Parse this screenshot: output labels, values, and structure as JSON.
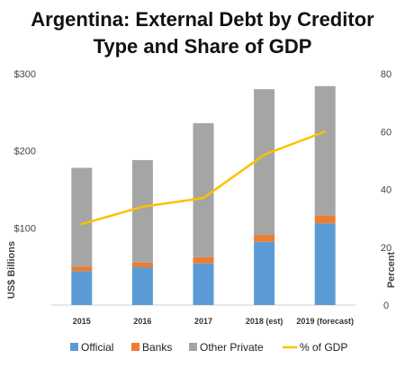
{
  "chart_data": {
    "type": "bar",
    "title_lines": [
      "Argentina: External Debt by Creditor",
      "Type and Share of GDP"
    ],
    "categories": [
      "2015",
      "2016",
      "2017",
      "2018 (est)",
      "2019 (forecast)"
    ],
    "series": [
      {
        "name": "Official",
        "kind": "bar",
        "axis": "left",
        "color": "#5b9bd5",
        "values": [
          44,
          49,
          54,
          82,
          106
        ]
      },
      {
        "name": "Banks",
        "kind": "bar",
        "axis": "left",
        "color": "#ed7d31",
        "values": [
          6,
          6,
          8,
          9,
          10
        ]
      },
      {
        "name": "Other Private",
        "kind": "bar",
        "axis": "left",
        "color": "#a5a5a5",
        "values": [
          128,
          133,
          174,
          189,
          168
        ]
      },
      {
        "name": "% of GDP",
        "kind": "line",
        "axis": "right",
        "color": "#ffc000",
        "values": [
          28,
          34,
          37,
          52,
          60
        ]
      }
    ],
    "ylabel_left": "US$ Billions",
    "ylabel_right": "Percent",
    "ylim_left": [
      0,
      300
    ],
    "ylim_right": [
      0,
      80
    ],
    "yticks_left": [
      "",
      "$100",
      "$200",
      "$300"
    ],
    "yticks_right": [
      "0",
      "20",
      "40",
      "60",
      "80"
    ],
    "grid": false,
    "legend_position": "bottom"
  }
}
